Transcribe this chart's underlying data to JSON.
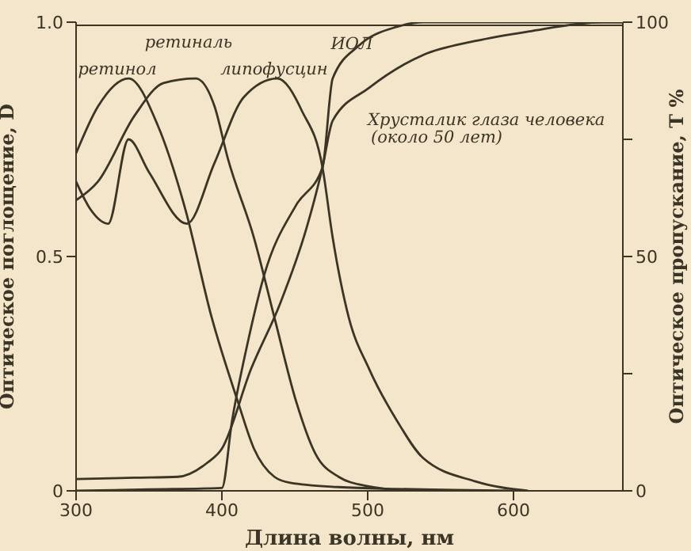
{
  "chart_data": {
    "type": "line",
    "xlabel": "Длина волны, нм",
    "ylabel": "Оптическое поглощение, D",
    "y2label": "Оптическое пропускание, T %",
    "xlim": [
      300,
      675
    ],
    "xticks": [
      300,
      400,
      500,
      600
    ],
    "ylim": [
      0,
      1
    ],
    "yticks": [
      0,
      0.5,
      {
        "value": 1,
        "label": "1.0"
      }
    ],
    "y2lim": [
      0,
      100
    ],
    "y2ticks": [
      0,
      {
        "value": 25,
        "label": null
      },
      50,
      {
        "value": 75,
        "label": null
      },
      100
    ],
    "marker": "none",
    "line_style": "solid",
    "series": [
      {
        "color": "#3b3526",
        "x": [
          300,
          315,
          336,
          356,
          375,
          393,
          411,
          422,
          436,
          447,
          480,
          520,
          560,
          600
        ],
        "values": [
          0.72,
          0.82,
          0.88,
          0.78,
          0.6,
          0.37,
          0.19,
          0.09,
          0.03,
          0.017,
          0.008,
          0.004,
          0.002,
          0
        ]
      },
      {
        "color": "#3b3526",
        "x": [
          300,
          315,
          340,
          360,
          382,
          395,
          404,
          422,
          436,
          451,
          464,
          480,
          500,
          530
        ],
        "values": [
          0.62,
          0.66,
          0.8,
          0.87,
          0.88,
          0.82,
          0.71,
          0.54,
          0.37,
          0.19,
          0.08,
          0.03,
          0.01,
          0
        ]
      },
      {
        "color": "#3b3526",
        "x": [
          300,
          310,
          322,
          336,
          350,
          376,
          395,
          415,
          438,
          455,
          469,
          476,
          487,
          501,
          520,
          538,
          574,
          610
        ],
        "values": [
          0.66,
          0.6,
          0.57,
          0.75,
          0.68,
          0.57,
          0.7,
          0.84,
          0.88,
          0.81,
          0.69,
          0.54,
          0.37,
          0.26,
          0.15,
          0.07,
          0.02,
          0
        ]
      },
      {
        "color": "#3b3526",
        "axis": "y2",
        "x": [
          300,
          350,
          400,
          407,
          418,
          429,
          451,
          469,
          476,
          494,
          520,
          538,
          675
        ],
        "values": [
          0,
          0.3,
          0.6,
          15,
          32,
          46,
          61,
          69,
          88,
          95,
          99,
          100,
          100
        ]
      },
      {
        "color": "#3b3526",
        "axis": "y2",
        "x": [
          300,
          340,
          370,
          390,
          400,
          420,
          440,
          458,
          469,
          476,
          501,
          538,
          574,
          610,
          661,
          675
        ],
        "values": [
          2.5,
          2.8,
          3,
          6,
          9,
          26,
          40,
          56,
          69,
          79,
          86,
          93,
          96,
          98,
          100,
          100
        ]
      }
    ],
    "annotations": [
      "ретинол",
      "ретиналь",
      "липофусцин",
      "ИОЛ",
      "Хрусталик глаза человека\n(около 50 лет)"
    ]
  }
}
